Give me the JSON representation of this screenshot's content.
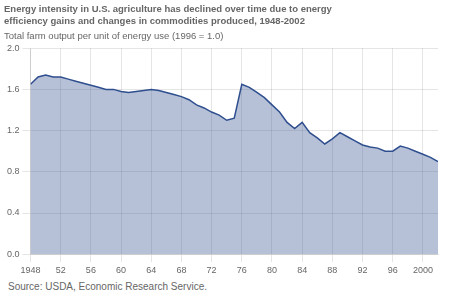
{
  "chart_data": {
    "type": "area",
    "title": "Energy intensity in U.S. agriculture has declined over time due to energy\nefficiency gains and changes in commodities produced, 1948-2002",
    "ylabel": "Total farm output per unit of energy use (1996 = 1.0)",
    "annotations": [
      "Source: USDA, Economic Research Service."
    ],
    "x": [
      1948,
      1949,
      1950,
      1951,
      1952,
      1953,
      1954,
      1955,
      1956,
      1957,
      1958,
      1959,
      1960,
      1961,
      1962,
      1963,
      1964,
      1965,
      1966,
      1967,
      1968,
      1969,
      1970,
      1971,
      1972,
      1973,
      1974,
      1975,
      1976,
      1977,
      1978,
      1979,
      1980,
      1981,
      1982,
      1983,
      1984,
      1985,
      1986,
      1987,
      1988,
      1989,
      1990,
      1991,
      1992,
      1993,
      1994,
      1995,
      1996,
      1997,
      1998,
      1999,
      2000,
      2001,
      2002
    ],
    "values": [
      1.65,
      1.72,
      1.74,
      1.72,
      1.72,
      1.7,
      1.68,
      1.66,
      1.64,
      1.62,
      1.6,
      1.6,
      1.58,
      1.57,
      1.58,
      1.59,
      1.6,
      1.59,
      1.57,
      1.55,
      1.53,
      1.5,
      1.45,
      1.42,
      1.38,
      1.35,
      1.3,
      1.32,
      1.65,
      1.62,
      1.57,
      1.52,
      1.45,
      1.38,
      1.28,
      1.22,
      1.28,
      1.18,
      1.13,
      1.07,
      1.12,
      1.18,
      1.14,
      1.1,
      1.06,
      1.04,
      1.03,
      1.0,
      1.0,
      1.05,
      1.03,
      1.0,
      0.97,
      0.94,
      0.9
    ],
    "color": "#2e4e8e",
    "xlim": [
      1948,
      2002
    ],
    "xticks": [
      1948,
      {
        "value": 1952,
        "label": "52"
      },
      {
        "value": 1956,
        "label": "56"
      },
      {
        "value": 1960,
        "label": "60"
      },
      {
        "value": 1964,
        "label": "64"
      },
      {
        "value": 1968,
        "label": "68"
      },
      {
        "value": 1972,
        "label": "72"
      },
      {
        "value": 1976,
        "label": "76"
      },
      {
        "value": 1980,
        "label": "80"
      },
      {
        "value": 1984,
        "label": "84"
      },
      {
        "value": 1988,
        "label": "88"
      },
      {
        "value": 1992,
        "label": "92"
      },
      {
        "value": 1996,
        "label": "96"
      },
      2000
    ],
    "ylim": [
      0.0,
      2.0
    ],
    "yticks": [
      {
        "value": 0,
        "label": "0.0"
      },
      0.4,
      0.8,
      1.2,
      1.6,
      {
        "value": 2,
        "label": "2.0"
      }
    ],
    "grid": true
  }
}
